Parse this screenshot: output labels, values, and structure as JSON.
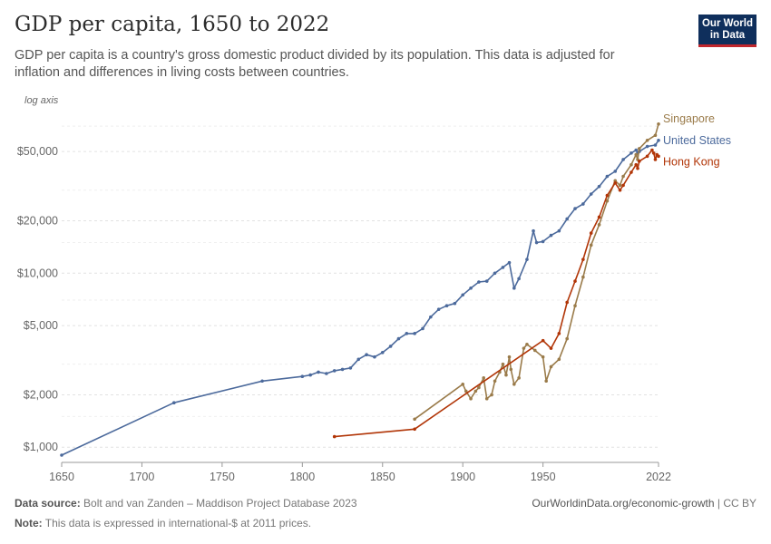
{
  "header": {
    "title": "GDP per capita, 1650 to 2022",
    "subtitle": "GDP per capita is a country's gross domestic product divided by its population. This data is adjusted for inflation and differences in living costs between countries.",
    "logo_line1": "Our World",
    "logo_line2": "in Data"
  },
  "footer": {
    "source_label": "Data source:",
    "source_text": "Bolt and van Zanden – Maddison Project Database 2023",
    "note_label": "Note:",
    "note_text": "This data is expressed in international-$ at 2011 prices.",
    "url": "OurWorldinData.org/economic-growth",
    "license": "CC BY"
  },
  "chart_data": {
    "type": "line",
    "title": "GDP per capita, 1650 to 2022",
    "scale_note": "log axis",
    "y_scale": "log",
    "xlim": [
      1650,
      2022
    ],
    "ylim": [
      900,
      80000
    ],
    "x_ticks": [
      1650,
      1700,
      1750,
      1800,
      1850,
      1900,
      1950,
      2022
    ],
    "x_tick_labels": [
      "1650",
      "1700",
      "1750",
      "1800",
      "1850",
      "1900",
      "1950",
      "2022"
    ],
    "y_ticks": [
      1000,
      2000,
      5000,
      10000,
      20000,
      50000
    ],
    "y_tick_labels": [
      "$1,000",
      "$2,000",
      "$5,000",
      "$10,000",
      "$20,000",
      "$50,000"
    ],
    "grid": true,
    "legend": "end-of-line labels",
    "series": [
      {
        "name": "United States",
        "color": "#4c6a9c",
        "points": [
          [
            1650,
            900
          ],
          [
            1720,
            1800
          ],
          [
            1775,
            2400
          ],
          [
            1800,
            2550
          ],
          [
            1805,
            2600
          ],
          [
            1810,
            2700
          ],
          [
            1815,
            2650
          ],
          [
            1820,
            2750
          ],
          [
            1825,
            2800
          ],
          [
            1830,
            2850
          ],
          [
            1835,
            3200
          ],
          [
            1840,
            3400
          ],
          [
            1845,
            3300
          ],
          [
            1850,
            3500
          ],
          [
            1855,
            3800
          ],
          [
            1860,
            4200
          ],
          [
            1865,
            4500
          ],
          [
            1870,
            4500
          ],
          [
            1875,
            4800
          ],
          [
            1880,
            5600
          ],
          [
            1885,
            6200
          ],
          [
            1890,
            6500
          ],
          [
            1895,
            6700
          ],
          [
            1900,
            7500
          ],
          [
            1905,
            8200
          ],
          [
            1910,
            8900
          ],
          [
            1915,
            9000
          ],
          [
            1920,
            10000
          ],
          [
            1925,
            10800
          ],
          [
            1929,
            11500
          ],
          [
            1932,
            8200
          ],
          [
            1935,
            9300
          ],
          [
            1940,
            12000
          ],
          [
            1944,
            17500
          ],
          [
            1946,
            15000
          ],
          [
            1950,
            15200
          ],
          [
            1955,
            16500
          ],
          [
            1960,
            17500
          ],
          [
            1965,
            20500
          ],
          [
            1970,
            23500
          ],
          [
            1975,
            25000
          ],
          [
            1980,
            28500
          ],
          [
            1985,
            31500
          ],
          [
            1990,
            36000
          ],
          [
            1995,
            38500
          ],
          [
            2000,
            45000
          ],
          [
            2005,
            49000
          ],
          [
            2008,
            51000
          ],
          [
            2009,
            49000
          ],
          [
            2010,
            50000
          ],
          [
            2015,
            53500
          ],
          [
            2020,
            54500
          ],
          [
            2022,
            58000
          ]
        ]
      },
      {
        "name": "Singapore",
        "color": "#9a7b4a",
        "points": [
          [
            1870,
            1450
          ],
          [
            1900,
            2300
          ],
          [
            1902,
            2100
          ],
          [
            1905,
            1900
          ],
          [
            1908,
            2100
          ],
          [
            1910,
            2200
          ],
          [
            1913,
            2500
          ],
          [
            1915,
            1900
          ],
          [
            1918,
            2000
          ],
          [
            1920,
            2400
          ],
          [
            1923,
            2700
          ],
          [
            1925,
            3000
          ],
          [
            1927,
            2600
          ],
          [
            1929,
            3300
          ],
          [
            1930,
            2800
          ],
          [
            1932,
            2300
          ],
          [
            1935,
            2500
          ],
          [
            1938,
            3700
          ],
          [
            1940,
            3900
          ],
          [
            1945,
            3600
          ],
          [
            1950,
            3300
          ],
          [
            1952,
            2400
          ],
          [
            1955,
            2900
          ],
          [
            1960,
            3200
          ],
          [
            1965,
            4200
          ],
          [
            1970,
            6500
          ],
          [
            1975,
            9500
          ],
          [
            1980,
            14500
          ],
          [
            1985,
            19000
          ],
          [
            1990,
            26000
          ],
          [
            1995,
            34000
          ],
          [
            1998,
            32000
          ],
          [
            2000,
            36000
          ],
          [
            2005,
            42000
          ],
          [
            2008,
            48000
          ],
          [
            2009,
            45000
          ],
          [
            2010,
            52000
          ],
          [
            2015,
            58000
          ],
          [
            2020,
            62000
          ],
          [
            2022,
            72000
          ]
        ]
      },
      {
        "name": "Hong Kong",
        "color": "#b13507",
        "points": [
          [
            1820,
            1150
          ],
          [
            1870,
            1270
          ],
          [
            1950,
            4100
          ],
          [
            1955,
            3700
          ],
          [
            1960,
            4500
          ],
          [
            1965,
            6800
          ],
          [
            1970,
            9000
          ],
          [
            1975,
            12000
          ],
          [
            1980,
            17000
          ],
          [
            1985,
            21000
          ],
          [
            1990,
            28000
          ],
          [
            1995,
            33000
          ],
          [
            1998,
            30000
          ],
          [
            2000,
            32000
          ],
          [
            2005,
            38000
          ],
          [
            2008,
            42000
          ],
          [
            2009,
            40000
          ],
          [
            2010,
            44000
          ],
          [
            2015,
            47000
          ],
          [
            2018,
            51000
          ],
          [
            2019,
            49000
          ],
          [
            2020,
            45000
          ],
          [
            2021,
            48000
          ],
          [
            2022,
            47000
          ]
        ]
      }
    ]
  }
}
